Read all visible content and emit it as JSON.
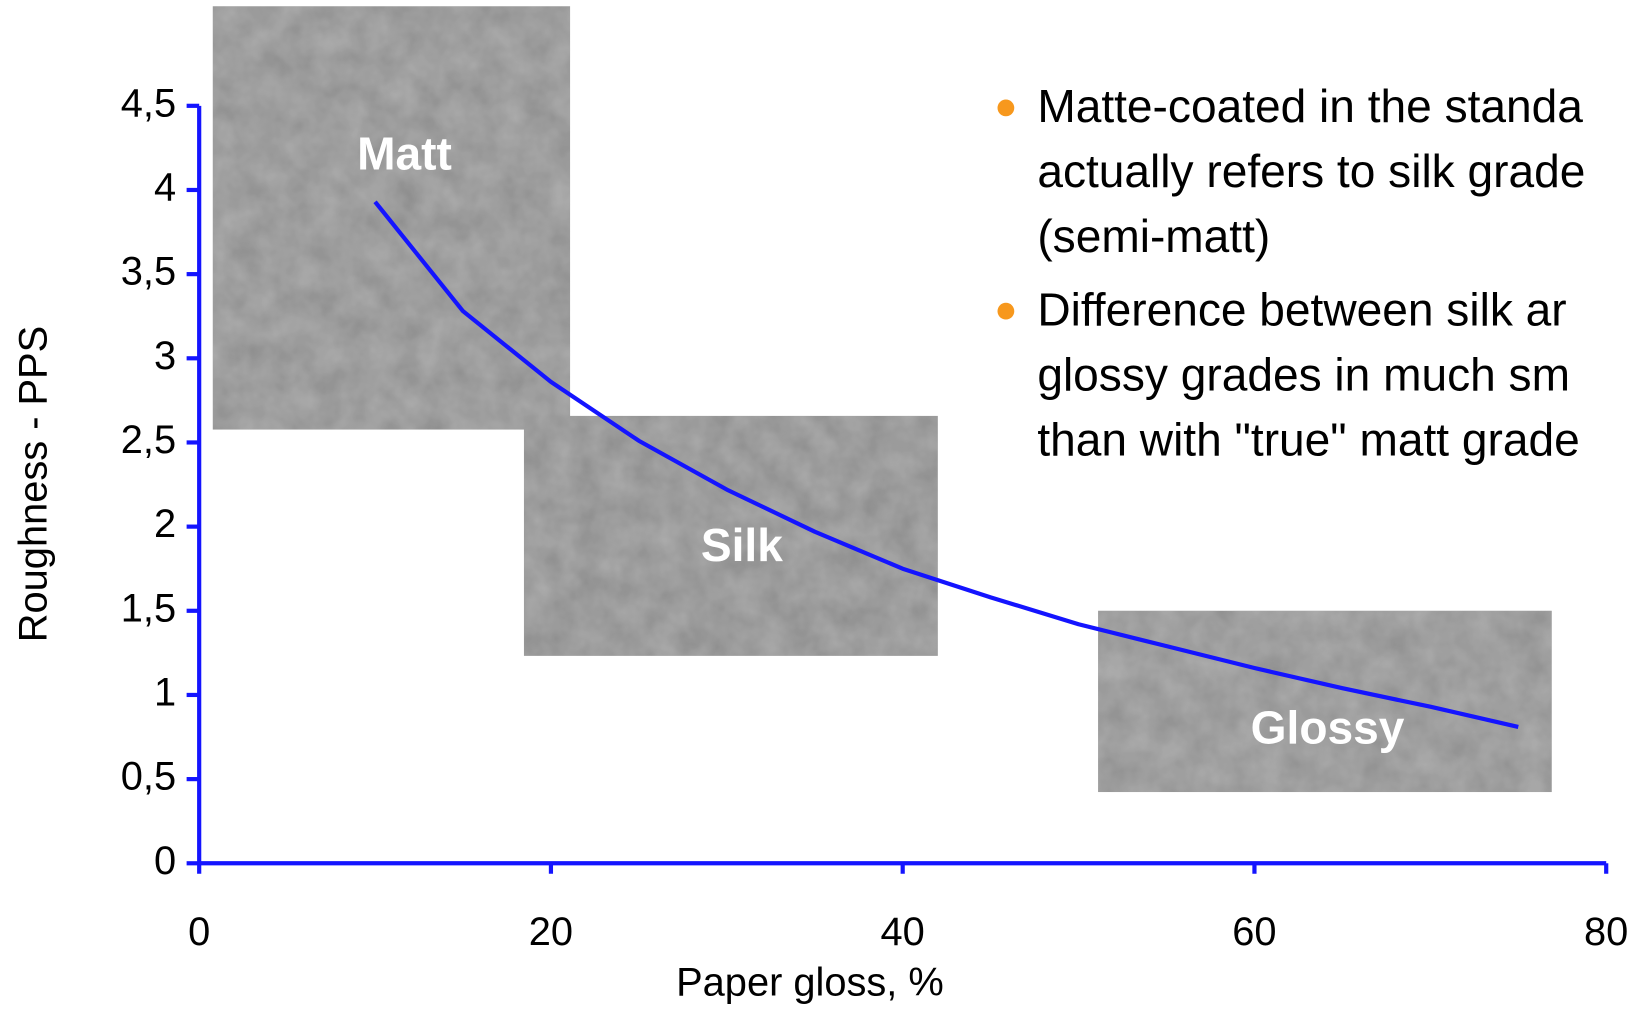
{
  "chart_data": {
    "type": "line",
    "x_label": "Paper gloss, %",
    "y_label": "Roughness - PPS",
    "x": [
      10,
      15,
      20,
      25,
      30,
      35,
      40,
      45,
      50,
      55,
      60,
      65,
      70,
      75
    ],
    "series": [
      {
        "name": "Roughness",
        "color": "#1414ff",
        "values": [
          3.93,
          3.28,
          2.86,
          2.51,
          2.22,
          1.97,
          1.75,
          1.58,
          1.42,
          1.29,
          1.16,
          1.04,
          0.93,
          0.81
        ]
      }
    ],
    "xlim": [
      0,
      80
    ],
    "ylim": [
      0,
      4.5
    ],
    "xticks": [
      0,
      20,
      40,
      60,
      80
    ],
    "yticks": [
      0,
      {
        "value": 0.5,
        "label": "0,5"
      },
      1,
      {
        "value": 1.5,
        "label": "1,5"
      },
      2,
      {
        "value": 2.5,
        "label": "2,5"
      },
      3,
      {
        "value": 3.5,
        "label": "3,5"
      },
      4,
      {
        "value": 4.5,
        "label": "4,5"
      }
    ],
    "axis_color": "#1414ff",
    "annotations": [
      "Matt",
      "Silk",
      "Glossy"
    ],
    "bullets": [
      [
        "Matte-coated in the standa",
        "actually refers to silk grade",
        "(semi-matt)"
      ],
      [
        "Difference between silk ar",
        "glossy grades in much sm",
        "than with \"true\" matt grade"
      ]
    ]
  }
}
